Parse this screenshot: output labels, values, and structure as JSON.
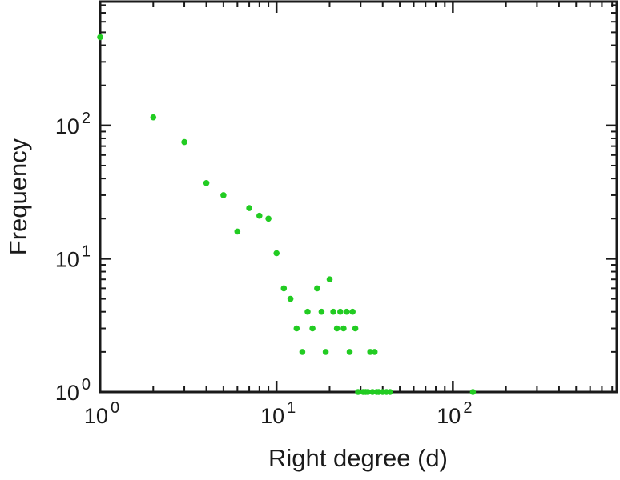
{
  "chart_data": {
    "type": "scatter",
    "scale": "log-log",
    "title": "",
    "xlabel": "Right degree (d)",
    "ylabel": "Frequency",
    "xlim": [
      1,
      850
    ],
    "ylim": [
      1,
      850
    ],
    "grid": false,
    "legend": "none",
    "marker": "filled-circle",
    "marker_color": "#22cc22",
    "axis_color": "#1a1a1a",
    "tick_label_base": "10",
    "x_tick_exponents": [
      0,
      1,
      2
    ],
    "y_tick_exponents": [
      0,
      1,
      2
    ],
    "points": [
      [
        1,
        460
      ],
      [
        2,
        115
      ],
      [
        3,
        75
      ],
      [
        4,
        37
      ],
      [
        5,
        30
      ],
      [
        6,
        16
      ],
      [
        7,
        24
      ],
      [
        8,
        21
      ],
      [
        9,
        20
      ],
      [
        10,
        11
      ],
      [
        11,
        6
      ],
      [
        12,
        5
      ],
      [
        13,
        3
      ],
      [
        14,
        2
      ],
      [
        15,
        4
      ],
      [
        16,
        3
      ],
      [
        17,
        6
      ],
      [
        18,
        4
      ],
      [
        19,
        2
      ],
      [
        20,
        7
      ],
      [
        21,
        4
      ],
      [
        22,
        3
      ],
      [
        23,
        4
      ],
      [
        24,
        3
      ],
      [
        25,
        4
      ],
      [
        26,
        2
      ],
      [
        27,
        4
      ],
      [
        28,
        3
      ],
      [
        29,
        1
      ],
      [
        31,
        1
      ],
      [
        32,
        1
      ],
      [
        33,
        1
      ],
      [
        34,
        2
      ],
      [
        35,
        1
      ],
      [
        36,
        2
      ],
      [
        37,
        1
      ],
      [
        38,
        1
      ],
      [
        40,
        1
      ],
      [
        42,
        1
      ],
      [
        44,
        1
      ],
      [
        130,
        1
      ]
    ]
  }
}
